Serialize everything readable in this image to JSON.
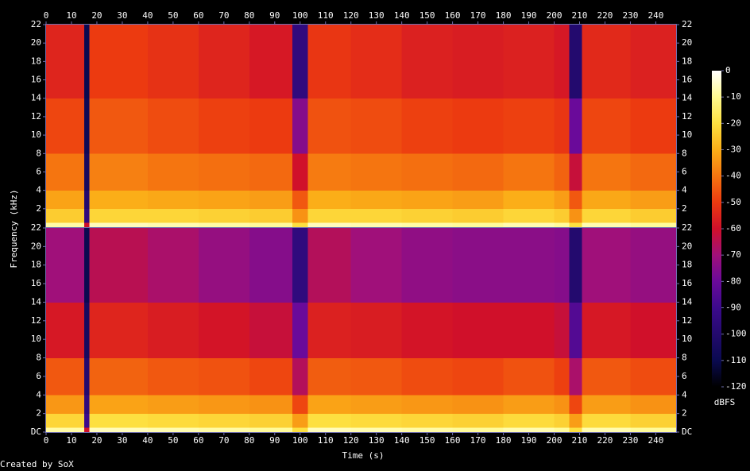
{
  "chart_data": {
    "type": "spectrogram",
    "xlabel": "Time (s)",
    "ylabel": "Frequency (kHz)",
    "footer": "Created by SoX",
    "xlim": [
      0,
      248
    ],
    "xticks": [
      0,
      10,
      20,
      30,
      40,
      50,
      60,
      70,
      80,
      90,
      100,
      110,
      120,
      130,
      140,
      150,
      160,
      170,
      180,
      190,
      200,
      210,
      220,
      230,
      240
    ],
    "ylim": [
      0,
      22
    ],
    "xbins": [
      0,
      15,
      17,
      40,
      60,
      80,
      97,
      103,
      120,
      140,
      160,
      180,
      200,
      206,
      211,
      230,
      248
    ],
    "ybins": [
      0,
      0.5,
      2,
      4,
      8,
      14,
      22
    ],
    "channels": [
      {
        "yticks": [
          2,
          4,
          6,
          8,
          10,
          12,
          14,
          16,
          18,
          20,
          22
        ],
        "z": [
          [
            -8,
            -60,
            -6,
            -7,
            -8,
            -9,
            -20,
            -6,
            -7,
            -8,
            -9,
            -7,
            -9,
            -20,
            -7,
            -9
          ],
          [
            -24,
            -95,
            -22,
            -22,
            -23,
            -24,
            -35,
            -22,
            -22,
            -23,
            -24,
            -22,
            -24,
            -35,
            -22,
            -24
          ],
          [
            -32,
            -100,
            -30,
            -31,
            -32,
            -33,
            -45,
            -30,
            -31,
            -32,
            -33,
            -30,
            -33,
            -45,
            -31,
            -33
          ],
          [
            -40,
            -105,
            -38,
            -40,
            -41,
            -42,
            -60,
            -39,
            -40,
            -41,
            -42,
            -40,
            -43,
            -62,
            -40,
            -42
          ],
          [
            -48,
            -108,
            -45,
            -47,
            -49,
            -50,
            -75,
            -46,
            -47,
            -49,
            -50,
            -49,
            -51,
            -80,
            -48,
            -50
          ],
          [
            -55,
            -110,
            -50,
            -52,
            -55,
            -58,
            -95,
            -51,
            -53,
            -56,
            -57,
            -56,
            -58,
            -100,
            -54,
            -56
          ]
        ]
      },
      {
        "yticks": [
          {
            "value": 0,
            "label": "DC"
          },
          2,
          4,
          6,
          8,
          10,
          12,
          14,
          16,
          18,
          20,
          22
        ],
        "z": [
          [
            -8,
            -60,
            -6,
            -7,
            -8,
            -9,
            -20,
            -6,
            -7,
            -8,
            -9,
            -7,
            -9,
            -20,
            -7,
            -9
          ],
          [
            -22,
            -90,
            -20,
            -21,
            -22,
            -23,
            -33,
            -20,
            -21,
            -22,
            -23,
            -21,
            -23,
            -33,
            -21,
            -23
          ],
          [
            -34,
            -95,
            -32,
            -33,
            -34,
            -35,
            -48,
            -32,
            -33,
            -34,
            -35,
            -33,
            -35,
            -48,
            -33,
            -35
          ],
          [
            -45,
            -100,
            -43,
            -45,
            -46,
            -48,
            -66,
            -44,
            -45,
            -47,
            -48,
            -46,
            -49,
            -68,
            -45,
            -47
          ],
          [
            -58,
            -105,
            -55,
            -57,
            -59,
            -62,
            -80,
            -56,
            -57,
            -59,
            -60,
            -60,
            -62,
            -85,
            -58,
            -60
          ],
          [
            -70,
            -110,
            -65,
            -68,
            -72,
            -75,
            -95,
            -66,
            -70,
            -73,
            -74,
            -74,
            -75,
            -100,
            -70,
            -72
          ]
        ]
      }
    ],
    "colorbar": {
      "label": "dBFS",
      "lim": [
        -120,
        0
      ],
      "ticks": [
        0,
        -10,
        -20,
        -30,
        -40,
        -50,
        -60,
        -70,
        -80,
        -90,
        -100,
        -110,
        -120
      ],
      "colormap": [
        {
          "value": -120,
          "color": "#000000"
        },
        {
          "value": -110,
          "color": "#0a0a50"
        },
        {
          "value": -90,
          "color": "#3c0a8c"
        },
        {
          "value": -80,
          "color": "#6a0a9a"
        },
        {
          "value": -70,
          "color": "#a0107a"
        },
        {
          "value": -60,
          "color": "#d0102a"
        },
        {
          "value": -50,
          "color": "#ec3a10"
        },
        {
          "value": -40,
          "color": "#f57510"
        },
        {
          "value": -30,
          "color": "#fbae18"
        },
        {
          "value": -20,
          "color": "#fde040"
        },
        {
          "value": -10,
          "color": "#fffa90"
        },
        {
          "value": 0,
          "color": "#ffffff"
        }
      ]
    }
  }
}
